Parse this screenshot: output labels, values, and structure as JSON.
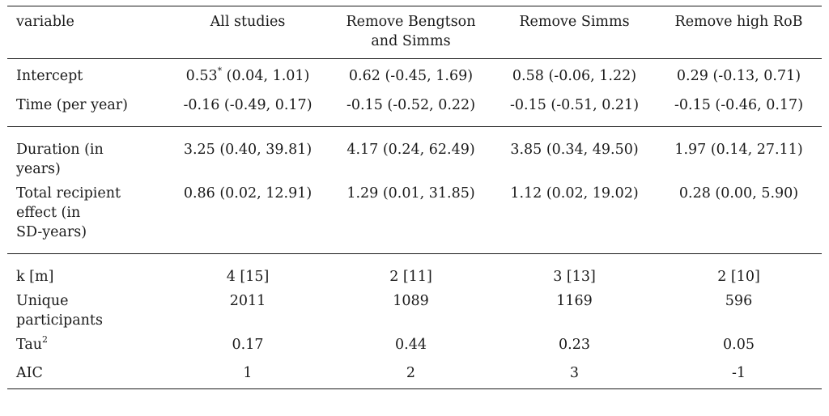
{
  "header": {
    "col0": "variable",
    "col1": "All studies",
    "col2_line1": "Remove Bengtson",
    "col2_line2": "and Simms",
    "col3": "Remove Simms",
    "col4": "Remove high RoB"
  },
  "rows": {
    "intercept": {
      "label": "Intercept",
      "all_est": "0.53",
      "all_star": "*",
      "all_ci": " (0.04, 1.01)",
      "rm_bs": "0.62 (-0.45, 1.69)",
      "rm_s": "0.58 (-0.06, 1.22)",
      "rm_rob": "0.29 (-0.13, 0.71)"
    },
    "time": {
      "label": "Time (per year)",
      "all": "-0.16 (-0.49, 0.17)",
      "rm_bs": "-0.15 (-0.52, 0.22)",
      "rm_s": "-0.15 (-0.51, 0.21)",
      "rm_rob": "-0.15 (-0.46, 0.17)"
    },
    "duration": {
      "label_line1": "Duration (in",
      "label_line2": "years)",
      "all": "3.25 (0.40, 39.81)",
      "rm_bs": "4.17 (0.24, 62.49)",
      "rm_s": "3.85 (0.34, 49.50)",
      "rm_rob": "1.97 (0.14, 27.11)"
    },
    "total": {
      "label_line1": "Total recipient",
      "label_line2": "effect (in",
      "label_line3": "SD-years)",
      "all": "0.86 (0.02, 12.91)",
      "rm_bs": "1.29 (0.01, 31.85)",
      "rm_s": "1.12 (0.02, 19.02)",
      "rm_rob": "0.28 (0.00, 5.90)"
    },
    "k": {
      "label": "k [m]",
      "all": "4 [15]",
      "rm_bs": "2 [11]",
      "rm_s": "3 [13]",
      "rm_rob": "2 [10]"
    },
    "unique": {
      "label_line1": "Unique",
      "label_line2": "participants",
      "all": "2011",
      "rm_bs": "1089",
      "rm_s": "1169",
      "rm_rob": "596"
    },
    "tau": {
      "label": "Tau",
      "label_sup": "2",
      "all": "0.17",
      "rm_bs": "0.44",
      "rm_s": "0.23",
      "rm_rob": "0.05"
    },
    "aic": {
      "label": "AIC",
      "all": "1",
      "rm_bs": "2",
      "rm_s": "3",
      "rm_rob": "-1"
    }
  }
}
